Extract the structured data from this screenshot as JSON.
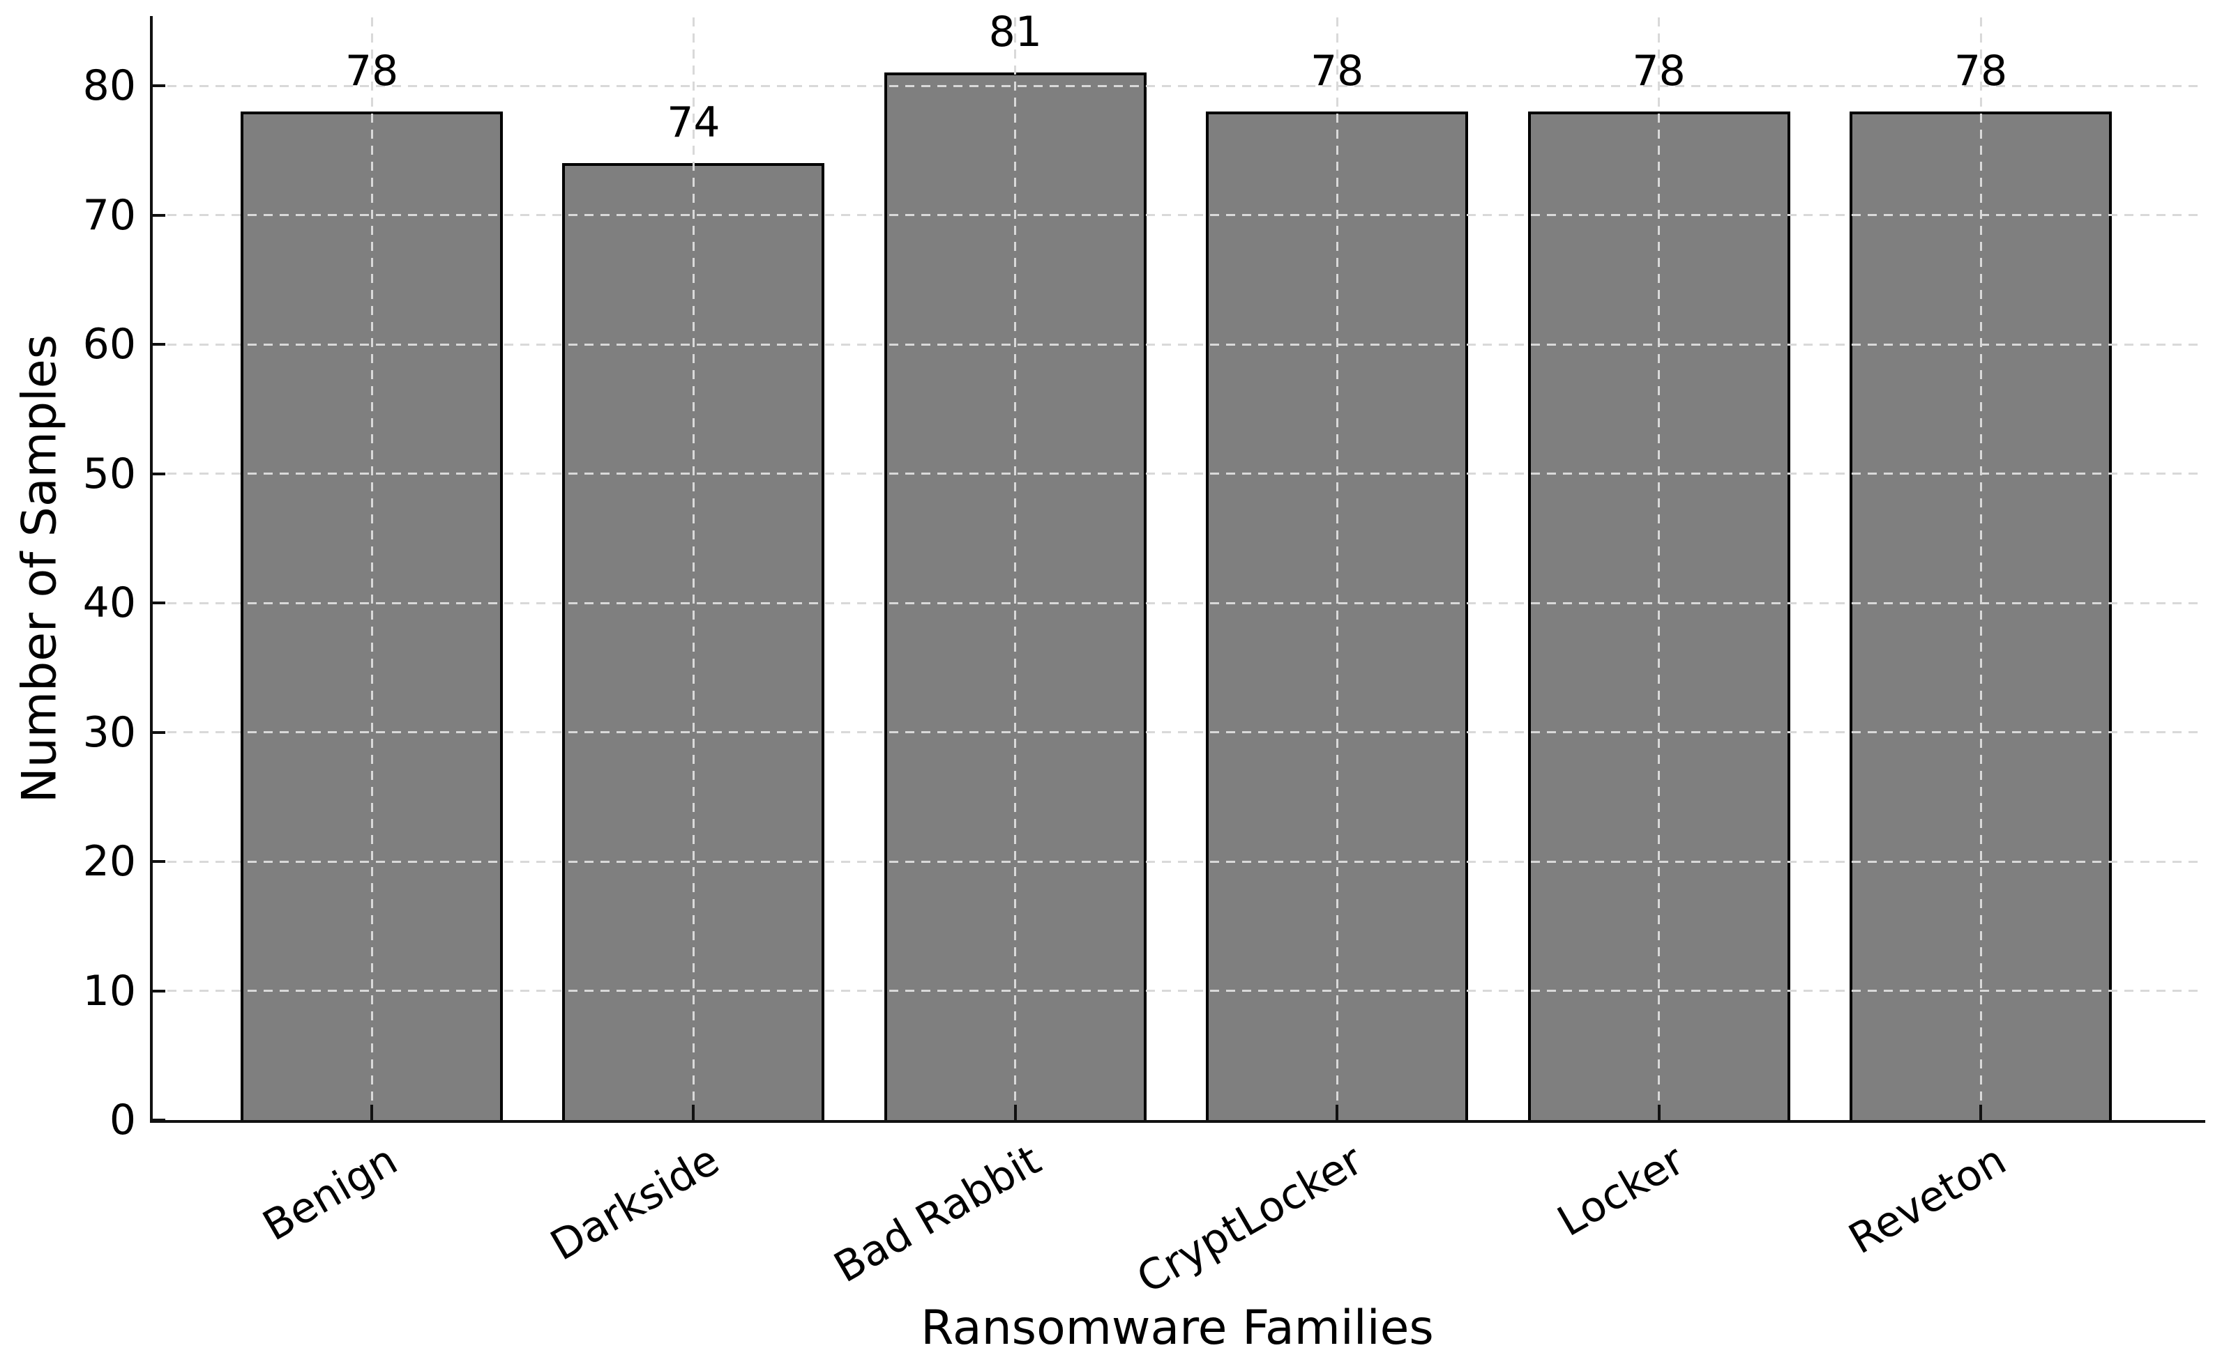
{
  "chart_data": {
    "type": "bar",
    "title": "",
    "xlabel": "Ransomware Families",
    "ylabel": "Number of Samples",
    "categories": [
      "Benign",
      "Darkside",
      "Bad Rabbit",
      "CryptLocker",
      "Locker",
      "Reveton"
    ],
    "values": [
      78,
      74,
      81,
      78,
      78,
      78
    ],
    "yticks": [
      0,
      10,
      20,
      30,
      40,
      50,
      60,
      70,
      80
    ],
    "ylim": [
      0,
      85
    ],
    "grid": true,
    "grid_style": "dashed",
    "grid_over_bars": true,
    "legend_position": "none",
    "tick_label_rotation": -30,
    "colors": {
      "bar_fill": "#7f7f7f",
      "bar_edge": "#000000",
      "grid": "#d9d9d9",
      "text": "#000000",
      "background": "#ffffff"
    }
  }
}
